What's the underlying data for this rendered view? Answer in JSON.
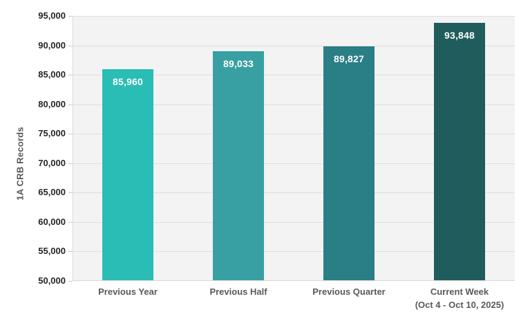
{
  "chart_data": {
    "type": "bar",
    "title": "",
    "xlabel": "",
    "ylabel": "1A CRB Records",
    "categories": [
      "Previous Year",
      "Previous Half",
      "Previous Quarter",
      "Current Week\n(Oct 4 - Oct 10, 2025)"
    ],
    "values": [
      85960,
      89033,
      89827,
      93848
    ],
    "value_labels": [
      "85,960",
      "89,033",
      "89,827",
      "93,848"
    ],
    "bar_colors": [
      "#29bdb6",
      "#38a0a2",
      "#2a7e85",
      "#205c5c"
    ],
    "ylim": [
      50000,
      95000
    ],
    "ytick_step": 5000,
    "ytick_labels": [
      "95,000",
      "90,000",
      "85,000",
      "80,000",
      "75,000",
      "70,000",
      "65,000",
      "60,000",
      "55,000",
      "50,000"
    ],
    "grid": true,
    "legend": false
  },
  "colors": {
    "background": "#ffffff",
    "plot_bg": "#f3f3f3",
    "gridline": "#dedede",
    "axis_line": "#d9d9d9",
    "tick": "#c9c9c9",
    "ytick_text": "#252525",
    "category_text": "#595959",
    "ylabel_text": "#575757",
    "value_text": "#ffffff"
  }
}
